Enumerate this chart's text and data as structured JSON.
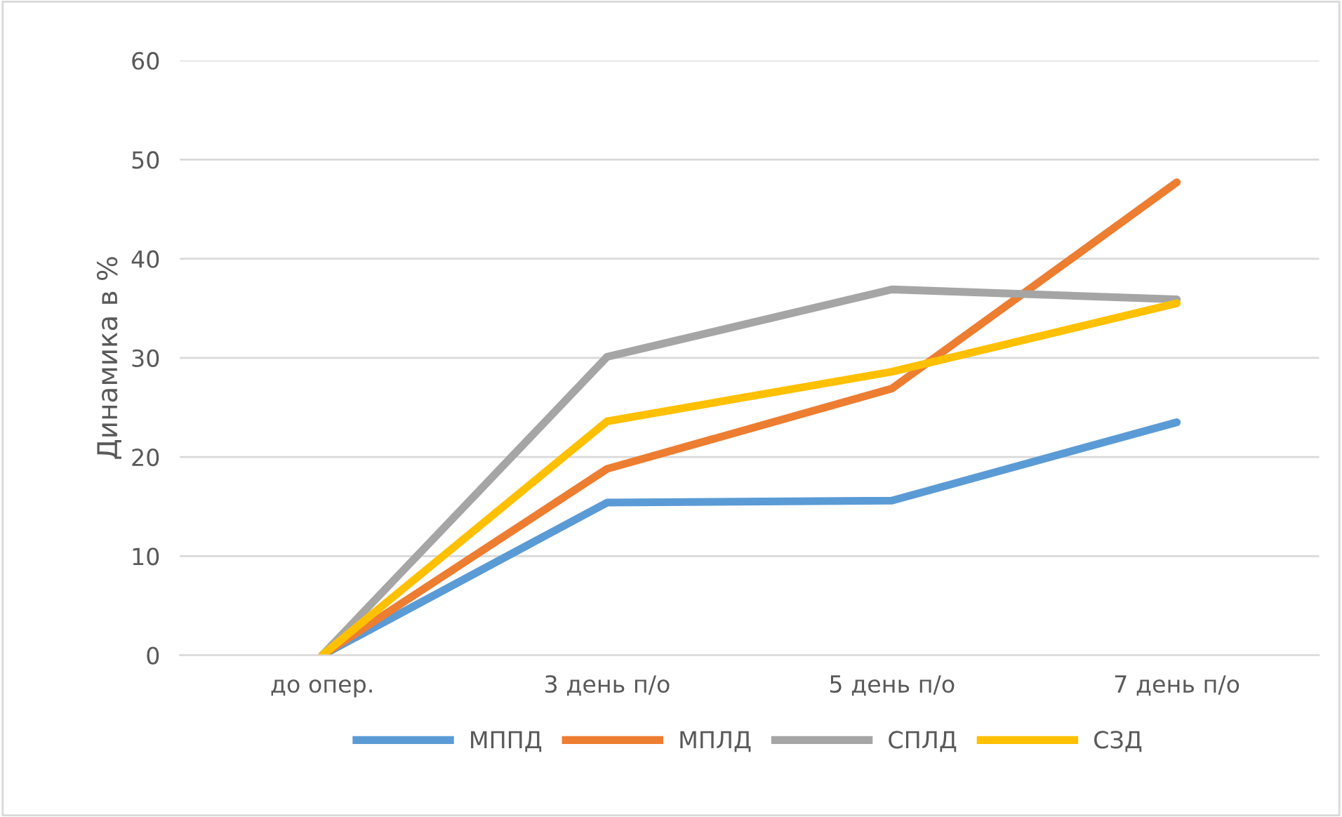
{
  "chart_data": {
    "type": "line",
    "ylabel": "Динамика в %",
    "categories": [
      "до опер.",
      "3 день п/о",
      "5 день п/о",
      "7 день п/о"
    ],
    "series": [
      {
        "name": "МППД",
        "color": "#5b9bd5",
        "values": [
          0,
          15.4,
          15.6,
          23.5
        ]
      },
      {
        "name": "МПЛД",
        "color": "#ed7d31",
        "values": [
          0,
          18.8,
          26.9,
          47.7
        ]
      },
      {
        "name": "СПЛД",
        "color": "#a5a5a5",
        "values": [
          0,
          30.1,
          36.9,
          35.9
        ]
      },
      {
        "name": "СЗД",
        "color": "#ffc000",
        "values": [
          0,
          23.6,
          28.6,
          35.5
        ]
      }
    ],
    "ylim": [
      0,
      60
    ],
    "yticks": [
      0,
      10,
      20,
      30,
      40,
      50,
      60
    ],
    "grid": "y",
    "legend": "bottom",
    "marker": "none",
    "line_style": "solid"
  }
}
